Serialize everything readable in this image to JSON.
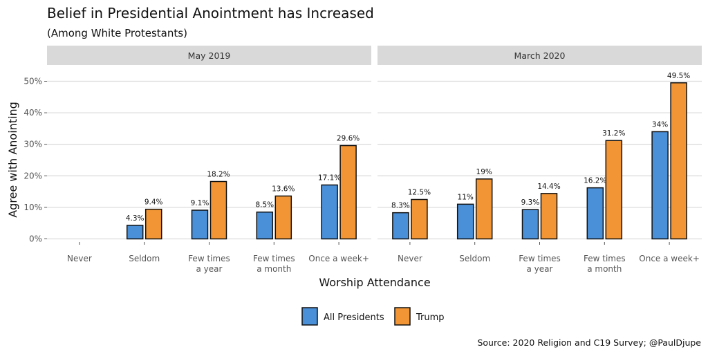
{
  "chart_data": {
    "type": "bar",
    "title": "Belief in Presidential Anointment has Increased",
    "subtitle": "(Among White Protestants)",
    "xlabel": "Worship Attendance",
    "ylabel": "Agree with Anointing",
    "ylim": [
      0,
      50
    ],
    "yticks": [
      0,
      10,
      20,
      30,
      40,
      50
    ],
    "ytick_labels": [
      "0%",
      "10%",
      "20%",
      "30%",
      "40%",
      "50%"
    ],
    "grid": true,
    "legend_position": "bottom",
    "categories": [
      [
        "Never"
      ],
      [
        "Seldom"
      ],
      [
        "Few times",
        "a year"
      ],
      [
        "Few times",
        "a month"
      ],
      [
        "Once a week+"
      ]
    ],
    "series_meta": [
      {
        "name": "All Presidents",
        "color": "#4a90d9"
      },
      {
        "name": "Trump",
        "color": "#f29534"
      }
    ],
    "panels": [
      {
        "name": "May 2019",
        "series": [
          {
            "name": "All Presidents",
            "values": [
              null,
              4.3,
              9.1,
              8.5,
              17.1
            ],
            "labels": [
              null,
              "4.3%",
              "9.1%",
              "8.5%",
              "17.1%"
            ]
          },
          {
            "name": "Trump",
            "values": [
              null,
              9.4,
              18.2,
              13.6,
              29.6
            ],
            "labels": [
              null,
              "9.4%",
              "18.2%",
              "13.6%",
              "29.6%"
            ]
          }
        ]
      },
      {
        "name": "March 2020",
        "series": [
          {
            "name": "All Presidents",
            "values": [
              8.3,
              11,
              9.3,
              16.2,
              34
            ],
            "labels": [
              "8.3%",
              "11%",
              "9.3%",
              "16.2%",
              "34%"
            ]
          },
          {
            "name": "Trump",
            "values": [
              12.5,
              19,
              14.4,
              31.2,
              49.5
            ],
            "labels": [
              "12.5%",
              "19%",
              "14.4%",
              "31.2%",
              "49.5%"
            ]
          }
        ]
      }
    ],
    "caption": "Source: 2020 Religion and C19 Survey; @PaulDjupe"
  }
}
